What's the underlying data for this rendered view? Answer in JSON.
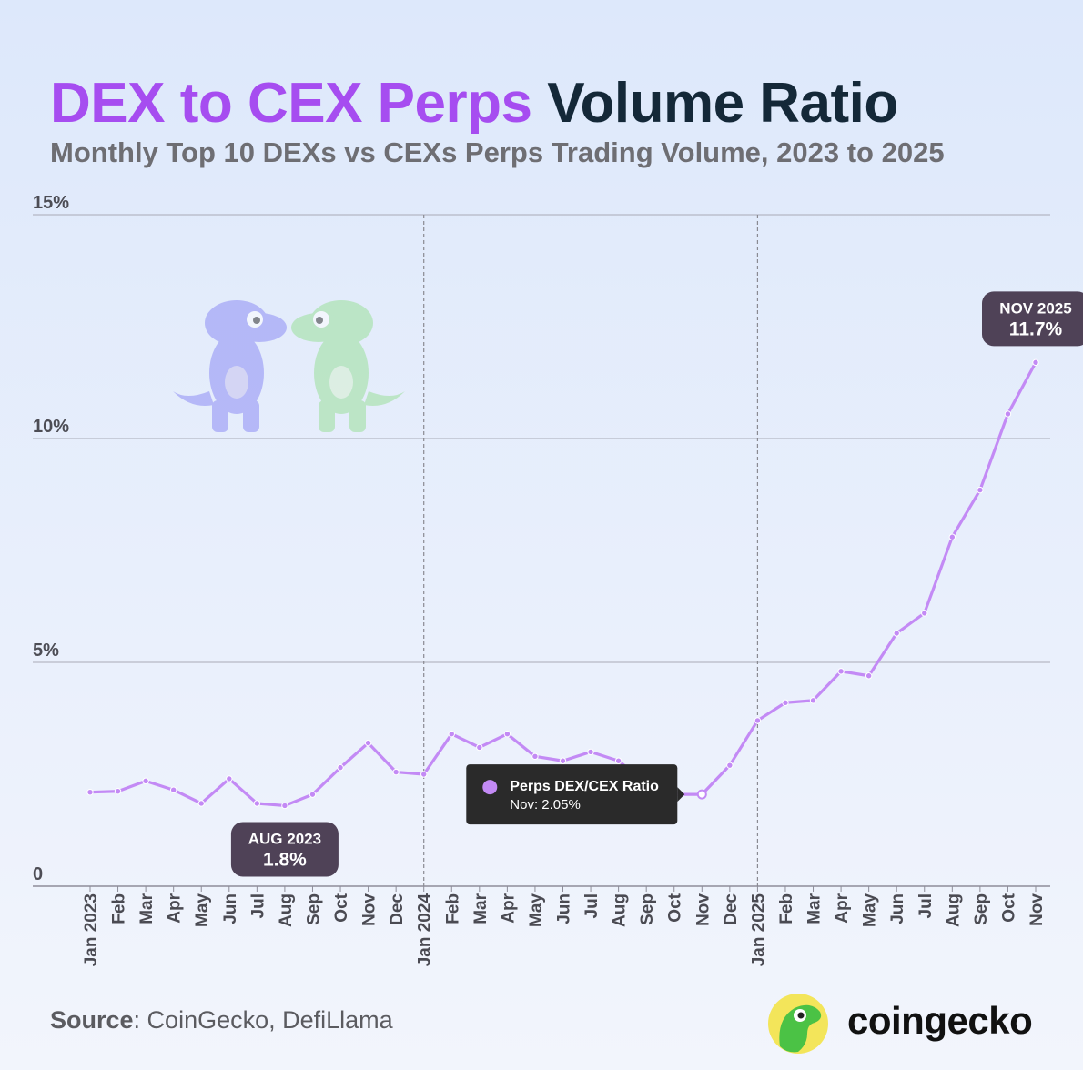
{
  "title": {
    "accent": "DEX to CEX Perps",
    "rest": "Volume Ratio"
  },
  "subtitle": "Monthly Top 10 DEXs vs CEXs Perps Trading Volume, 2023 to 2025",
  "source": {
    "label": "Source",
    "text": ": CoinGecko, DefiLlama"
  },
  "brand": "coingecko",
  "colors": {
    "line": "#c38af5",
    "title_accent": "#a64df0",
    "title_dark": "#142838",
    "callout_bg": "#4f4257",
    "tooltip_bg": "#2a2a2a"
  },
  "chart_data": {
    "type": "line",
    "categories": [
      "Jan 2023",
      "Feb",
      "Mar",
      "Apr",
      "May",
      "Jun",
      "Jul",
      "Aug",
      "Sep",
      "Oct",
      "Nov",
      "Dec",
      "Jan 2024",
      "Feb",
      "Mar",
      "Apr",
      "May",
      "Jun",
      "Jul",
      "Aug",
      "Sep",
      "Oct",
      "Nov",
      "Dec",
      "Jan 2025",
      "Feb",
      "Mar",
      "Apr",
      "May",
      "Jun",
      "Jul",
      "Aug",
      "Sep",
      "Oct",
      "Nov"
    ],
    "series": [
      {
        "name": "Perps DEX/CEX Ratio",
        "values": [
          2.1,
          2.12,
          2.35,
          2.15,
          1.85,
          2.4,
          1.85,
          1.8,
          2.05,
          2.65,
          3.2,
          2.55,
          2.5,
          3.4,
          3.1,
          3.4,
          2.9,
          2.8,
          3.0,
          2.8,
          2.3,
          2.05,
          2.05,
          2.7,
          3.7,
          4.1,
          4.15,
          4.8,
          4.7,
          5.65,
          6.1,
          7.8,
          8.85,
          10.55,
          11.7
        ]
      }
    ],
    "ylim": [
      0,
      15
    ],
    "yticks": [
      0,
      5,
      10,
      15
    ],
    "ytick_labels": [
      "0",
      "5%",
      "10%",
      "15%"
    ],
    "year_dividers": [
      "Jan 2024",
      "Jan 2025"
    ],
    "grid": true,
    "annotations": [
      {
        "index": 7,
        "title": "AUG 2023",
        "value": "1.8%"
      },
      {
        "index": 34,
        "title": "NOV 2025",
        "value": "11.7%"
      }
    ],
    "tooltip": {
      "index": 22,
      "series": "Perps DEX/CEX Ratio",
      "label": "Nov: 2.05%"
    }
  }
}
